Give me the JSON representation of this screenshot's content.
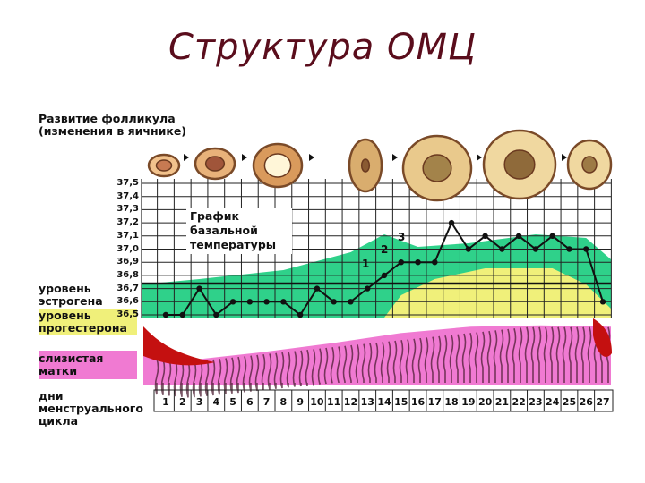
{
  "title": "Структура ОМЦ",
  "labels": {
    "follicle_heading": "Развитие фолликула (изменения в яичнике)",
    "estrogen": "уровень эстрогена",
    "progesterone": "уровень прогестерона",
    "mucosa": "слизистая матки",
    "cycle_days": "дни менструального цикла"
  },
  "plot_note": "График базальной температуры",
  "markers": [
    "1",
    "2",
    "3"
  ],
  "icons": [
    "follicle-stage-1-icon",
    "follicle-stage-2-icon",
    "follicle-stage-3-icon",
    "ovulation-icon",
    "corpus-luteum-icon-1",
    "corpus-luteum-icon-2",
    "corpus-luteum-icon-3"
  ],
  "colors": {
    "estrogen": "#2fd18a",
    "progesterone": "#f0f07a",
    "mucosa": "#f07ad2",
    "menstruation": "#c41010",
    "temperature_line": "#111111"
  },
  "chart_data": {
    "type": "line",
    "temp_ticks": [
      "37,5",
      "37,4",
      "37,3",
      "37,2",
      "37,1",
      "37,0",
      "36,9",
      "36,8",
      "36,7",
      "36,6",
      "36,5"
    ],
    "days": [
      "1",
      "2",
      "3",
      "4",
      "5",
      "6",
      "7",
      "8",
      "9",
      "10",
      "11",
      "12",
      "13",
      "14",
      "15",
      "16",
      "17",
      "18",
      "19",
      "20",
      "21",
      "22",
      "23",
      "24",
      "25",
      "26",
      "27"
    ],
    "series": [
      {
        "x": [
          1,
          2,
          3,
          4,
          5,
          6,
          7,
          8,
          9,
          10,
          11,
          12,
          13,
          14,
          15,
          16,
          17,
          18,
          19,
          20,
          21,
          22,
          23,
          24,
          25,
          26,
          27
        ],
        "y": [
          36.5,
          36.5,
          36.7,
          36.5,
          36.6,
          36.6,
          36.6,
          36.6,
          36.5,
          36.7,
          36.6,
          36.6,
          36.7,
          36.8,
          36.9,
          36.9,
          36.9,
          37.2,
          37.0,
          37.1,
          37.0,
          37.1,
          37.0,
          37.1,
          37.0,
          37.0,
          36.6
        ]
      }
    ],
    "ylim": [
      36.5,
      37.5
    ]
  }
}
